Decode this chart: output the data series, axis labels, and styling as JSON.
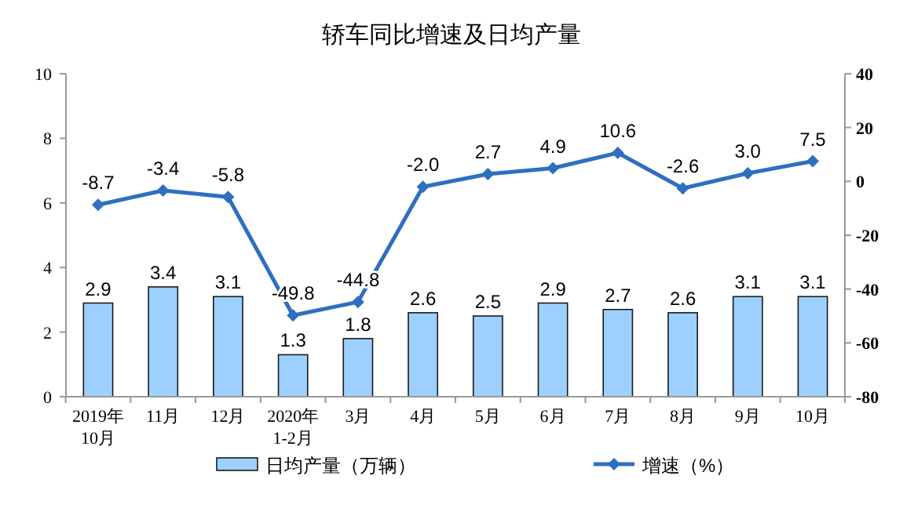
{
  "chart_data": {
    "type": "bar",
    "title": "轿车同比增速及日均产量",
    "categories": [
      "2019年\n10月",
      "11月",
      "12月",
      "2020年\n1-2月",
      "3月",
      "4月",
      "5月",
      "6月",
      "7月",
      "8月",
      "9月",
      "10月"
    ],
    "series": [
      {
        "name": "日均产量（万辆）",
        "color": "#9dd0ff",
        "values": [
          2.9,
          3.4,
          3.1,
          1.3,
          1.8,
          2.6,
          2.5,
          2.9,
          2.7,
          2.6,
          3.1,
          3.1
        ],
        "value_labels": [
          "2.9",
          "3.4",
          "3.1",
          "1.3",
          "1.8",
          "2.6",
          "2.5",
          "2.9",
          "2.7",
          "2.6",
          "3.1",
          "3.1"
        ]
      },
      {
        "name": "增速（%）",
        "type": "line",
        "axis": "y2",
        "color": "#2e6fc0",
        "marker": "diamond",
        "values": [
          -8.7,
          -3.4,
          -5.8,
          -49.8,
          -44.8,
          -2.0,
          2.7,
          4.9,
          10.6,
          -2.6,
          3.0,
          7.5
        ],
        "value_labels": [
          "-8.7",
          "-3.4",
          "-5.8",
          "-49.8",
          "-44.8",
          "-2.0",
          "2.7",
          "4.9",
          "10.6",
          "-2.6",
          "3.0",
          "7.5"
        ]
      }
    ],
    "ylim": [
      0,
      10
    ],
    "yticks": [
      0,
      2,
      4,
      6,
      8,
      10
    ],
    "y2lim": [
      -80,
      40
    ],
    "y2ticks": [
      -80,
      -60,
      -40,
      -20,
      0,
      20,
      40
    ],
    "legend": "bottom",
    "grid": false
  }
}
